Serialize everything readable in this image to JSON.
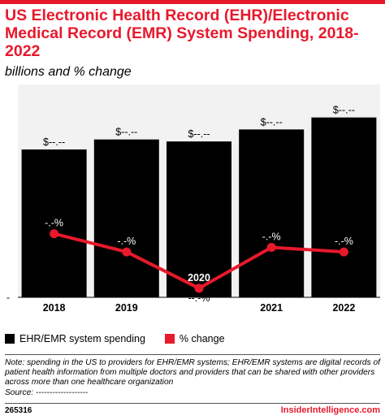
{
  "title": "US Electronic Health Record (EHR)/Electronic Medical Record (EMR) System Spending, 2018-2022",
  "subtitle": "billions and % change",
  "colors": {
    "accent": "#e8192c",
    "bars": "#000000",
    "line": "#e8192c",
    "plot_bg": "#f2f2f2"
  },
  "chart_data": {
    "type": "bar",
    "categories": [
      "2018",
      "2019",
      "2020",
      "2021",
      "2022"
    ],
    "series": [
      {
        "name": "EHR/EMR system spending",
        "type": "bar",
        "values": [
          74,
          79,
          78,
          84,
          90
        ],
        "labels": [
          "$--.--",
          "$--.--",
          "$--.--",
          "$--.--",
          "$--.--"
        ]
      },
      {
        "name": "% change",
        "type": "line",
        "values": [
          10,
          6,
          -2,
          7,
          6
        ],
        "labels": [
          "-.-%",
          "-.-%",
          "--.-%",
          "-.-%",
          "-.-%"
        ]
      }
    ],
    "ylim": [
      0,
      100
    ],
    "secondary_ylim": [
      -4,
      40
    ],
    "zero_axis_label": "-",
    "grid": false,
    "legend_position": "bottom-left"
  },
  "legend": [
    {
      "label": "EHR/EMR system spending",
      "color": "#000000"
    },
    {
      "label": "% change",
      "color": "#e8192c"
    }
  ],
  "note": "Note: spending in the US to providers for EHR/EMR systems; EHR/EMR systems are digital records of patient health information from multiple doctors and providers that can be shared with other providers across more than one healthcare organization",
  "source": "Source: -------------------",
  "chart_id": "265316",
  "brand": "InsiderIntelligence.com"
}
